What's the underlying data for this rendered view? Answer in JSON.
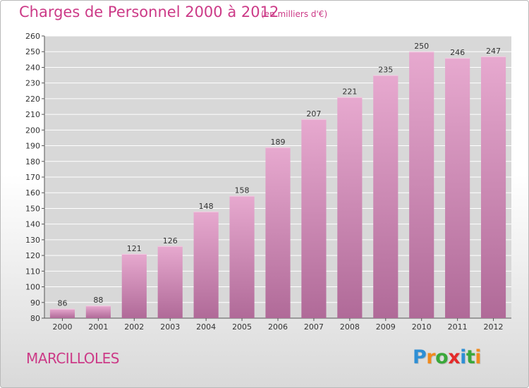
{
  "header": {
    "title": "Charges de Personnel 2000 à 2012",
    "subtitle": "(en milliers d'€)"
  },
  "footer": {
    "commune": "MARCILLOLES",
    "brand": "Proxiti"
  },
  "colors": {
    "accent": "#cc3a87",
    "bar_top": "#e7a9cf",
    "bar_bottom": "#b06a98",
    "grid": "#ffffff",
    "plot_background": "#d8d8d8",
    "brand_letters": [
      "#2e8fd5",
      "#f08a1c",
      "#3aa83a",
      "#e42a2a",
      "#2e8fd5",
      "#3aa83a",
      "#f08a1c"
    ]
  },
  "chart_data": {
    "type": "bar",
    "title": "Charges de Personnel 2000 à 2012",
    "subtitle": "(en milliers d'€)",
    "categories": [
      "2000",
      "2001",
      "2002",
      "2003",
      "2004",
      "2005",
      "2006",
      "2007",
      "2008",
      "2009",
      "2010",
      "2011",
      "2012"
    ],
    "values": [
      86,
      88,
      121,
      126,
      148,
      158,
      189,
      207,
      221,
      235,
      250,
      246,
      247
    ],
    "ylim": [
      80,
      260
    ],
    "yticks": [
      80,
      90,
      100,
      110,
      120,
      130,
      140,
      150,
      160,
      170,
      180,
      190,
      200,
      210,
      220,
      230,
      240,
      250,
      260
    ],
    "xlabel": "",
    "ylabel": "",
    "grid": true,
    "legend": "none",
    "data_labels": true
  }
}
